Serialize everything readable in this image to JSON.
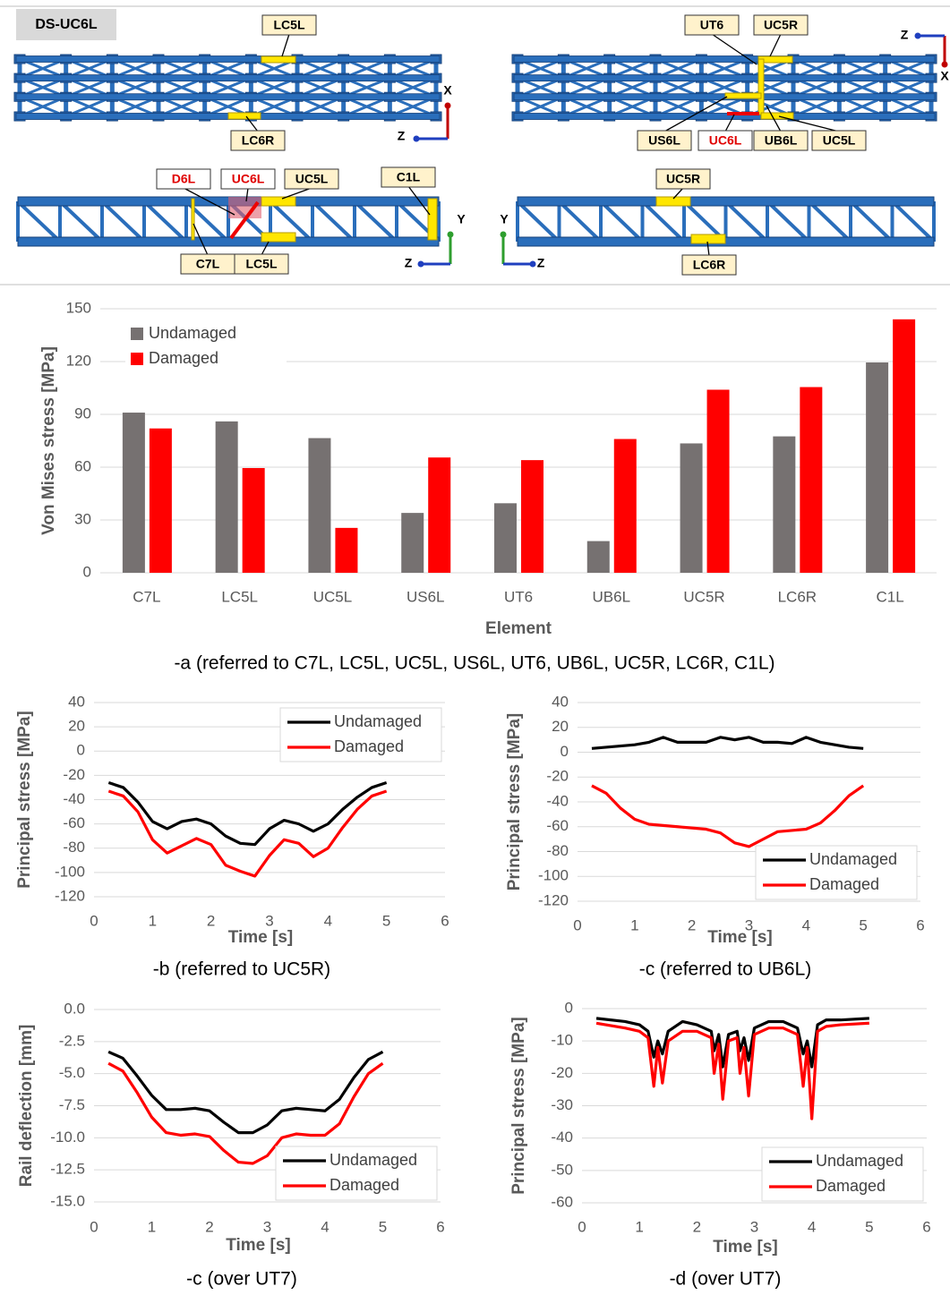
{
  "diagram": {
    "title": "DS-UC6L",
    "panels": [
      {
        "labels": [
          "LC5L",
          "LC6R"
        ],
        "axes": [
          "X",
          "Z"
        ]
      },
      {
        "labels": [
          "UT6",
          "UC5R",
          "US6L",
          "UC6L",
          "UB6L",
          "UC5L"
        ],
        "axes": [
          "Z",
          "X"
        ]
      },
      {
        "labels": [
          "D6L",
          "UC6L",
          "UC5L",
          "C1L",
          "C7L",
          "LC5L"
        ],
        "axes": [
          "Y",
          "Z"
        ]
      },
      {
        "labels": [
          "UC5R",
          "LC6R"
        ],
        "axes": [
          "Y",
          "Z"
        ]
      }
    ]
  },
  "chart_data": [
    {
      "type": "bar",
      "caption": "-a (referred to C7L, LC5L, UC5L, US6L, UT6, UB6L, UC5R, LC6R, C1L)",
      "x_label": "Element",
      "y_label": "Von Mises stress [MPa]",
      "categories": [
        "C7L",
        "LC5L",
        "UC5L",
        "US6L",
        "UT6",
        "UB6L",
        "UC5R",
        "LC6R",
        "C1L"
      ],
      "series": [
        {
          "name": "Undamaged",
          "color": "#767171",
          "values": [
            91,
            86,
            76.5,
            34,
            39.5,
            18,
            73.5,
            77.5,
            119.5
          ]
        },
        {
          "name": "Damaged",
          "color": "#ff0000",
          "values": [
            82,
            59.5,
            25.5,
            65.5,
            64,
            76,
            104,
            105.5,
            144
          ]
        }
      ],
      "ylim": [
        0,
        150
      ],
      "yticks": [
        0,
        30,
        60,
        90,
        120,
        150
      ],
      "grid": true,
      "legend": "upper left"
    },
    {
      "type": "line",
      "caption": "-b (referred to UC5R)",
      "x_label": "Time [s]",
      "y_label": "Principal stress [MPa]",
      "x": [
        0.25,
        0.5,
        0.75,
        1.0,
        1.25,
        1.5,
        1.75,
        2.0,
        2.25,
        2.5,
        2.75,
        3.0,
        3.25,
        3.5,
        3.75,
        4.0,
        4.25,
        4.5,
        4.75,
        5.0
      ],
      "series": [
        {
          "name": "Undamaged",
          "color": "#000000",
          "values": [
            -26,
            -30,
            -42,
            -58,
            -64,
            -58,
            -56,
            -60,
            -70,
            -76,
            -77,
            -64,
            -57,
            -60,
            -66,
            -60,
            -48,
            -38,
            -30,
            -26
          ]
        },
        {
          "name": "Damaged",
          "color": "#ff0000",
          "values": [
            -33,
            -37,
            -50,
            -73,
            -84,
            -78,
            -72,
            -77,
            -94,
            -99,
            -103,
            -86,
            -73,
            -76,
            -87,
            -80,
            -63,
            -48,
            -37,
            -33
          ]
        }
      ],
      "xlim": [
        0,
        6
      ],
      "xticks": [
        0,
        1,
        2,
        3,
        4,
        5,
        6
      ],
      "ylim": [
        -120,
        40
      ],
      "yticks": [
        -120,
        -100,
        -80,
        -60,
        -40,
        -20,
        0,
        20,
        40
      ],
      "grid": true,
      "legend": "upper right"
    },
    {
      "type": "line",
      "caption": "-c (referred to UB6L)",
      "x_label": "Time [s]",
      "y_label": "Principal stress [MPa]",
      "x": [
        0.25,
        0.5,
        0.75,
        1.0,
        1.25,
        1.5,
        1.75,
        2.0,
        2.25,
        2.5,
        2.75,
        3.0,
        3.25,
        3.5,
        3.75,
        4.0,
        4.25,
        4.5,
        4.75,
        5.0
      ],
      "series": [
        {
          "name": "Undamaged",
          "color": "#000000",
          "values": [
            3,
            4,
            5,
            6,
            8,
            12,
            8,
            8,
            8,
            12,
            10,
            12,
            8,
            8,
            7,
            12,
            8,
            6,
            4,
            3
          ]
        },
        {
          "name": "Damaged",
          "color": "#ff0000",
          "values": [
            -27,
            -33,
            -45,
            -54,
            -58,
            -59,
            -60,
            -61,
            -62,
            -65,
            -73,
            -76,
            -70,
            -64,
            -63,
            -62,
            -57,
            -47,
            -35,
            -27
          ]
        }
      ],
      "xlim": [
        0,
        6
      ],
      "xticks": [
        0,
        1,
        2,
        3,
        4,
        5,
        6
      ],
      "ylim": [
        -120,
        40
      ],
      "yticks": [
        -120,
        -100,
        -80,
        -60,
        -40,
        -20,
        0,
        20,
        40
      ],
      "grid": true,
      "legend": "lower right"
    },
    {
      "type": "line",
      "caption": "-c (over UT7)",
      "x_label": "Time [s]",
      "y_label": "Rail deflection [mm]",
      "x": [
        0.25,
        0.5,
        0.75,
        1.0,
        1.25,
        1.5,
        1.75,
        2.0,
        2.25,
        2.5,
        2.75,
        3.0,
        3.25,
        3.5,
        3.75,
        4.0,
        4.25,
        4.5,
        4.75,
        5.0
      ],
      "series": [
        {
          "name": "Undamaged",
          "color": "#000000",
          "values": [
            -3.3,
            -3.8,
            -5.2,
            -6.7,
            -7.8,
            -7.8,
            -7.7,
            -7.9,
            -8.8,
            -9.6,
            -9.6,
            -9.0,
            -7.9,
            -7.7,
            -7.8,
            -7.9,
            -7.0,
            -5.3,
            -3.9,
            -3.3
          ]
        },
        {
          "name": "Damaged",
          "color": "#ff0000",
          "values": [
            -4.2,
            -4.8,
            -6.5,
            -8.4,
            -9.6,
            -9.8,
            -9.7,
            -9.9,
            -11.0,
            -11.9,
            -12.0,
            -11.4,
            -10.0,
            -9.7,
            -9.8,
            -9.8,
            -8.9,
            -6.8,
            -5.0,
            -4.2
          ]
        }
      ],
      "xlim": [
        0,
        6
      ],
      "xticks": [
        0,
        1,
        2,
        3,
        4,
        5,
        6
      ],
      "ylim": [
        -15,
        0
      ],
      "yticks": [
        {
          "value": -15,
          "label": "-15.0"
        },
        -12.5,
        {
          "value": -10,
          "label": "-10.0"
        },
        -7.5,
        {
          "value": -5,
          "label": "-5.0"
        },
        -2.5,
        {
          "value": 0,
          "label": "0.0"
        }
      ],
      "grid": true,
      "legend": "lower right"
    },
    {
      "type": "line",
      "caption": "-d (over UT7)",
      "x_label": "Time [s]",
      "y_label": "Principal stress [MPa]",
      "x": [
        0.25,
        0.75,
        1.0,
        1.15,
        1.25,
        1.32,
        1.4,
        1.5,
        1.75,
        2.0,
        2.25,
        2.3,
        2.38,
        2.45,
        2.55,
        2.7,
        2.75,
        2.82,
        2.9,
        3.0,
        3.25,
        3.5,
        3.75,
        3.85,
        3.92,
        4.0,
        4.1,
        4.25,
        4.5,
        5.0
      ],
      "series": [
        {
          "name": "Undamaged",
          "color": "#000000",
          "values": [
            -3,
            -4,
            -5,
            -7,
            -15,
            -10,
            -14,
            -7,
            -4,
            -5,
            -7,
            -13,
            -8,
            -18,
            -8,
            -7,
            -13,
            -9,
            -16,
            -6,
            -4,
            -4,
            -6,
            -14,
            -10,
            -18,
            -5,
            -3.5,
            -3.5,
            -3
          ]
        },
        {
          "name": "Damaged",
          "color": "#ff0000",
          "values": [
            -4.5,
            -6,
            -7,
            -9,
            -24,
            -12,
            -23,
            -10,
            -7,
            -7,
            -9,
            -20,
            -11,
            -28,
            -10,
            -9,
            -20,
            -12,
            -27,
            -8,
            -6,
            -6,
            -8,
            -24,
            -12,
            -34,
            -7,
            -5.5,
            -5,
            -4.5
          ]
        }
      ],
      "xlim": [
        0,
        6
      ],
      "xticks": [
        0,
        1,
        2,
        3,
        4,
        5,
        6
      ],
      "ylim": [
        -60,
        0
      ],
      "yticks": [
        -60,
        -50,
        -40,
        -30,
        -20,
        -10,
        0
      ],
      "grid": true,
      "legend": "lower right"
    }
  ]
}
